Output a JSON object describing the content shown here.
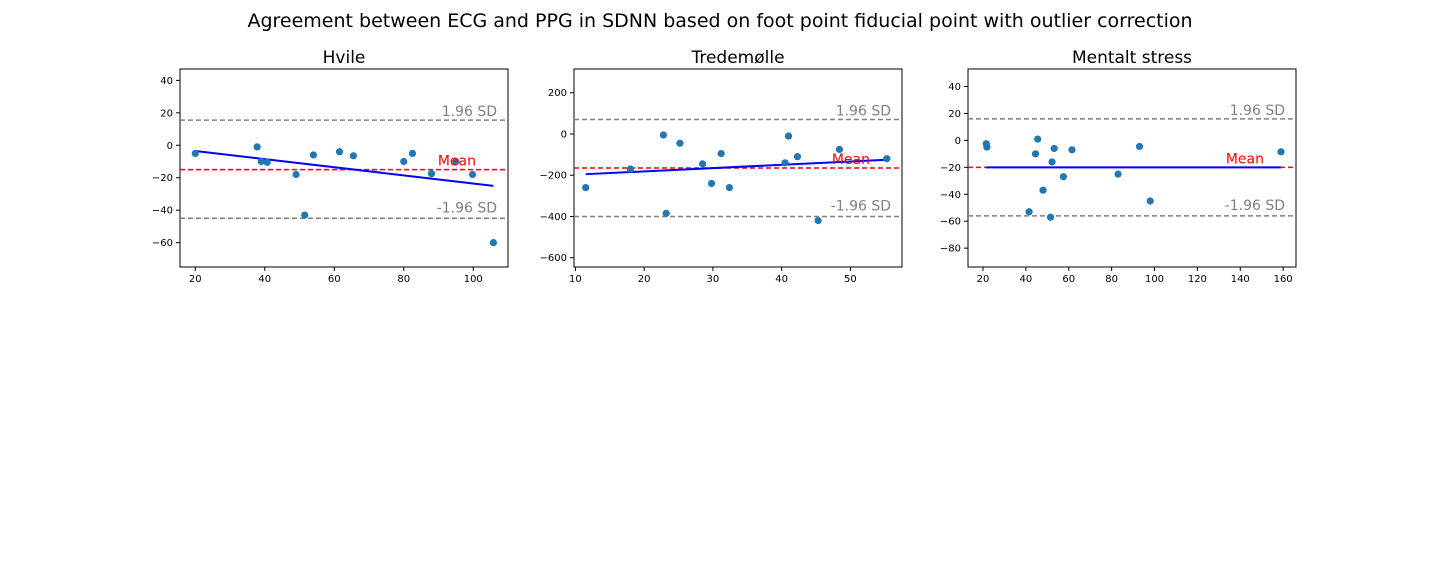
{
  "figure_title": "Agreement between ECG and PPG in SDNN based on foot point fiducial point with outlier correction",
  "colors": {
    "points": "#1f77b4",
    "regression": "#0000ff",
    "mean_line": "#ff0000",
    "sd_line": "#808080",
    "mean_label": "#ff0000",
    "sd_label": "#808080"
  },
  "chart_data": [
    {
      "type": "scatter",
      "title": "Hvile",
      "xlim": [
        15.6,
        110
      ],
      "ylim": [
        -75,
        47
      ],
      "xticks": [
        20,
        40,
        60,
        80,
        100
      ],
      "yticks": [
        -60,
        -40,
        -20,
        0,
        20,
        40
      ],
      "mean": -15,
      "upper_sd": 15.5,
      "lower_sd": -45,
      "labels": {
        "upper": "1.96 SD",
        "mean": "Mean",
        "lower": "-1.96 SD"
      },
      "regression": {
        "x": [
          20,
          105.8
        ],
        "y": [
          -3.5,
          -25
        ]
      },
      "points": [
        {
          "x": 20,
          "y": -5
        },
        {
          "x": 37.8,
          "y": -1
        },
        {
          "x": 39,
          "y": -10
        },
        {
          "x": 40.7,
          "y": -10.5
        },
        {
          "x": 49,
          "y": -18
        },
        {
          "x": 51.5,
          "y": -43
        },
        {
          "x": 54,
          "y": -6
        },
        {
          "x": 61.5,
          "y": -4
        },
        {
          "x": 65.5,
          "y": -6.5
        },
        {
          "x": 80,
          "y": -10
        },
        {
          "x": 82.5,
          "y": -5
        },
        {
          "x": 88,
          "y": -17.5
        },
        {
          "x": 95,
          "y": -10
        },
        {
          "x": 99.8,
          "y": -18
        },
        {
          "x": 105.8,
          "y": -60
        }
      ]
    },
    {
      "type": "scatter",
      "title": "Tredemølle",
      "xlim": [
        9.8,
        57.5
      ],
      "ylim": [
        -645,
        315
      ],
      "xticks": [
        10,
        20,
        30,
        40,
        50
      ],
      "yticks": [
        -600,
        -400,
        -200,
        0,
        200
      ],
      "mean": -165,
      "upper_sd": 70,
      "lower_sd": -400,
      "labels": {
        "upper": "1.96 SD",
        "mean": "Mean",
        "lower": "-1.96 SD"
      },
      "regression": {
        "x": [
          11.5,
          55.3
        ],
        "y": [
          -195,
          -125
        ]
      },
      "points": [
        {
          "x": 11.5,
          "y": -260
        },
        {
          "x": 18,
          "y": -170
        },
        {
          "x": 22.8,
          "y": -5
        },
        {
          "x": 23.2,
          "y": -385
        },
        {
          "x": 25.2,
          "y": -45
        },
        {
          "x": 28.5,
          "y": -145
        },
        {
          "x": 29.8,
          "y": -240
        },
        {
          "x": 31.2,
          "y": -95
        },
        {
          "x": 32.4,
          "y": -260
        },
        {
          "x": 40.5,
          "y": -140
        },
        {
          "x": 41,
          "y": -10
        },
        {
          "x": 42.3,
          "y": -110
        },
        {
          "x": 45.3,
          "y": -420
        },
        {
          "x": 48.4,
          "y": -75
        },
        {
          "x": 55.3,
          "y": -120
        }
      ]
    },
    {
      "type": "scatter",
      "title": "Mentalt stress",
      "xlim": [
        13,
        166
      ],
      "ylim": [
        -94,
        53
      ],
      "xticks": [
        20,
        40,
        60,
        80,
        100,
        120,
        140,
        160
      ],
      "yticks": [
        -80,
        -60,
        -40,
        -20,
        0,
        20,
        40
      ],
      "mean": -20,
      "upper_sd": 16,
      "lower_sd": -56,
      "labels": {
        "upper": "1.96 SD",
        "mean": "Mean",
        "lower": "-1.96 SD"
      },
      "regression": {
        "x": [
          21.5,
          159
        ],
        "y": [
          -20,
          -20
        ]
      },
      "points": [
        {
          "x": 21.5,
          "y": -2.5
        },
        {
          "x": 21.8,
          "y": -5
        },
        {
          "x": 41.5,
          "y": -53
        },
        {
          "x": 44.5,
          "y": -10
        },
        {
          "x": 45.5,
          "y": 1
        },
        {
          "x": 48,
          "y": -37
        },
        {
          "x": 51.5,
          "y": -57
        },
        {
          "x": 52.2,
          "y": -16
        },
        {
          "x": 53.2,
          "y": -6
        },
        {
          "x": 57.5,
          "y": -27
        },
        {
          "x": 61.5,
          "y": -7
        },
        {
          "x": 83,
          "y": -25
        },
        {
          "x": 93,
          "y": -4.5
        },
        {
          "x": 98,
          "y": -45
        },
        {
          "x": 159,
          "y": -8.5
        }
      ]
    }
  ]
}
